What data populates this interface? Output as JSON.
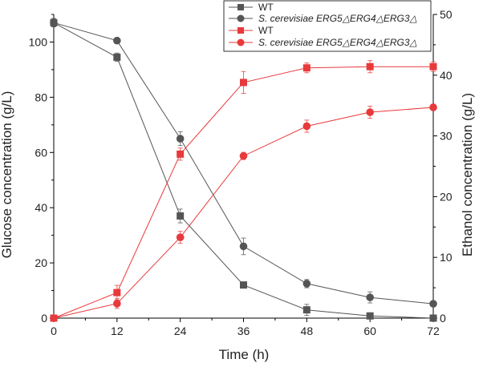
{
  "chart_data": {
    "type": "line",
    "x": [
      0,
      12,
      24,
      36,
      48,
      60,
      72
    ],
    "xlabel": "Time (h)",
    "xlim": [
      0,
      72
    ],
    "xticks": [
      "0",
      "12",
      "24",
      "36",
      "48",
      "60",
      "72"
    ],
    "ylabel_left": "Glucose concentration (g/L)",
    "ylim_left": [
      0,
      110
    ],
    "yticks_left": [
      "0",
      "20",
      "40",
      "60",
      "80",
      "100"
    ],
    "ylabel_right": "Ethanol concentration (g/L)",
    "ylim_right": [
      0,
      50
    ],
    "yticks_right": [
      "0",
      "10",
      "20",
      "30",
      "40",
      "50"
    ],
    "grid": false,
    "legend_position": "top-right",
    "series": [
      {
        "name": "WT",
        "axis": "left",
        "color": "#555555",
        "marker": "square",
        "values": [
          107,
          94.5,
          37,
          12,
          3,
          0.8,
          0
        ],
        "errors": [
          1.5,
          1.5,
          2.5,
          1.0,
          2.0,
          1.0,
          0.5
        ]
      },
      {
        "name": "S. cerevisiae ERG5△ERG4△ERG3△",
        "axis": "left",
        "color": "#555555",
        "marker": "circle",
        "values": [
          107,
          100.5,
          65,
          26,
          12.5,
          7.5,
          5.2
        ],
        "errors": [
          1.5,
          1.0,
          2.5,
          3.0,
          1.5,
          2.0,
          1.0
        ]
      },
      {
        "name": "WT",
        "axis": "right",
        "color": "#e8393b",
        "marker": "square",
        "values": [
          0,
          4.2,
          27,
          38.8,
          41.2,
          41.4,
          41.4
        ],
        "errors": [
          0.3,
          1.2,
          1.0,
          1.8,
          0.8,
          1.0,
          0.8
        ]
      },
      {
        "name": "S. cerevisiae ERG5△ERG4△ERG3△",
        "axis": "right",
        "color": "#e8393b",
        "marker": "circle",
        "values": [
          0,
          2.4,
          13.3,
          26.7,
          31.6,
          33.9,
          34.7
        ],
        "errors": [
          0.3,
          0.8,
          1.0,
          0.6,
          1.0,
          1.0,
          0.5
        ]
      }
    ]
  }
}
